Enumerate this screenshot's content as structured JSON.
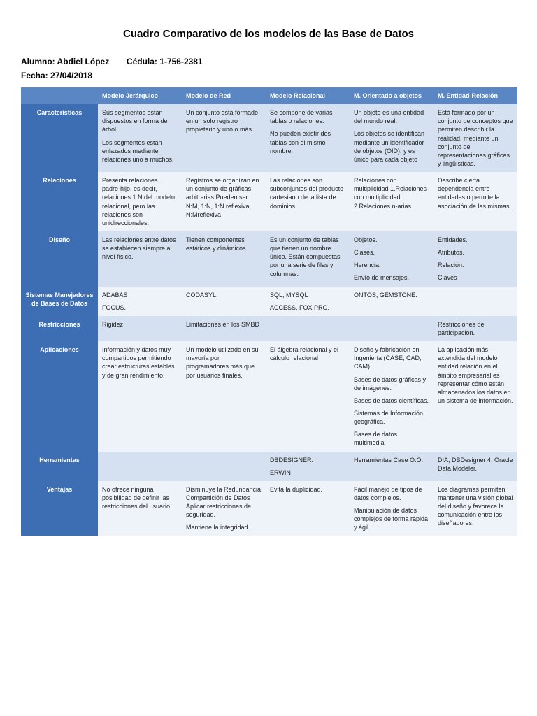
{
  "title": "Cuadro Comparativo de los modelos de las Base de Datos",
  "meta": {
    "alumno_label": "Alumno:",
    "alumno_value": "Abdiel López",
    "cedula_label": "Cédula:",
    "cedula_value": "1-756-2381",
    "fecha_label": "Fecha:",
    "fecha_value": "27/04/2018"
  },
  "table": {
    "colors": {
      "header_bg": "#5a86c4",
      "rowheader_bg": "#3d6db3",
      "header_text": "#ffffff",
      "row_odd_bg": "#d5e1f0",
      "row_even_bg": "#eef3fa",
      "cell_text": "#222222"
    },
    "columns": [
      "",
      "Modelo Jerárquico",
      "Modelo de Red",
      "Modelo Relacional",
      "M. Orientado a objetos",
      "M. Entidad-Relación"
    ],
    "rows": [
      {
        "header": "Características",
        "cells": [
          [
            "Sus segmentos están dispuestos en forma de árbol.",
            "Los segmentos están enlazados mediante relaciones uno a muchos."
          ],
          [
            "Un conjunto está formado en un solo registro propietario y uno o más."
          ],
          [
            "Se compone de varias tablas o relaciones.",
            "No pueden existir dos tablas con el mismo nombre."
          ],
          [
            "Un objeto es una entidad del mundo real.",
            "Los objetos se identifican mediante un identificador de objetos (OID), y es único para cada objeto"
          ],
          [
            "Está formado por un conjunto de conceptos que permiten describir la realidad, mediante un conjunto de representaciones gráficas y lingüísticas."
          ]
        ]
      },
      {
        "header": "Relaciones",
        "cells": [
          [
            "Presenta relaciones padre-hijo, es decir, relaciones 1:N del modelo relacional, pero las relaciones son unidireccionales."
          ],
          [
            "Registros se organizan en un conjunto de gráficas arbitrarias Pueden ser: N:M, 1:N, 1:N reflexiva, N:Mreflexiva"
          ],
          [
            "Las relaciones son subconjuntos del producto cartesiano de la lista de dominios."
          ],
          [
            "Relaciones con multiplicidad 1.Relaciones con multiplicidad 2.Relaciones n-arias"
          ],
          [
            "Describe cierta dependencia entre entidades o permite la asociación de las mismas."
          ]
        ]
      },
      {
        "header": "Diseño",
        "cells": [
          [
            "Las relaciones entre datos se establecen siempre a nivel físico."
          ],
          [
            "Tienen componentes estáticos y dinámicos."
          ],
          [
            "Es un conjunto de tablas que tienen un nombre único. Están compuestas por una serie de filas y columnas."
          ],
          [
            "Objetos.",
            "Clases.",
            "Herencia.",
            "Envío de mensajes."
          ],
          [
            "Entidades.",
            "Atributos.",
            "Relación.",
            "Claves"
          ]
        ]
      },
      {
        "header": "Sistemas Manejadores de Bases de Datos",
        "cells": [
          [
            "ADABAS",
            "FOCUS."
          ],
          [
            "CODASYL."
          ],
          [
            "SQL, MYSQL",
            "ACCESS, FOX PRO."
          ],
          [
            "ONTOS, GEMSTONE."
          ],
          [
            ""
          ]
        ]
      },
      {
        "header": "Restricciones",
        "cells": [
          [
            "Rigidez"
          ],
          [
            "Limitaciones en los SMBD"
          ],
          [
            ""
          ],
          [
            ""
          ],
          [
            "Restricciones de participación."
          ]
        ]
      },
      {
        "header": "Aplicaciones",
        "cells": [
          [
            "Información y datos muy compartidos permitiendo crear estructuras estables y de gran rendimiento."
          ],
          [
            "Un modelo utilizado en su mayoría por programadores más que por usuarios finales."
          ],
          [
            "El álgebra relacional y el cálculo relacional"
          ],
          [
            "Diseño y fabricación en Ingeniería (CASE, CAD, CAM).",
            "Bases de datos gráficas y de imágenes.",
            "Bases de datos científicas.",
            "Sistemas de Información geográfica.",
            "Bases de datos multimedia"
          ],
          [
            "La aplicación más extendida del modelo entidad relación en el ámbito empresarial es representar cómo están almacenados los datos en un sistema de información."
          ]
        ]
      },
      {
        "header": "Herramientas",
        "cells": [
          [
            ""
          ],
          [
            ""
          ],
          [
            "DBDESIGNER.",
            "ERWIN"
          ],
          [
            "Herramientas Case O.O."
          ],
          [
            "DIA, DBDesigner 4, Oracle Data Modeler."
          ]
        ]
      },
      {
        "header": "Ventajas",
        "cells": [
          [
            "No ofrece ninguna posibilidad de definir las restricciones del usuario."
          ],
          [
            "Disminuye la Redundancia Compartición de Datos Aplicar restricciones de seguridad.",
            "Mantiene la integridad"
          ],
          [
            "Evita la duplicidad."
          ],
          [
            "Fácil manejo de tipos de datos complejos.",
            "Manipulación de datos complejos de forma rápida y ágil."
          ],
          [
            "Los diagramas permiten mantener una visión global del diseño y favorece la comunicación entre los diseñadores."
          ]
        ]
      }
    ]
  }
}
